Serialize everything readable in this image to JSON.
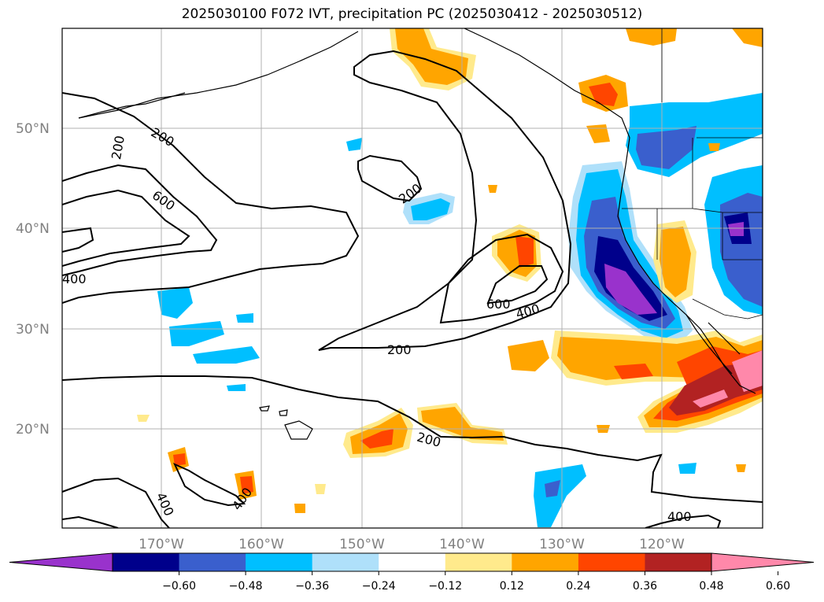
{
  "title": "2025030100 F072 IVT, precipitation PC (2025030412 - 2025030512)",
  "map": {
    "lat_labels": [
      "50°N",
      "40°N",
      "30°N",
      "20°N"
    ],
    "lon_labels": [
      "170°W",
      "160°W",
      "150°W",
      "140°W",
      "130°W",
      "120°W"
    ],
    "contour_labels": [
      "200",
      "200",
      "200",
      "200",
      "200",
      "400",
      "400",
      "400",
      "400",
      "400",
      "600",
      "600"
    ]
  },
  "colorbar": {
    "ticks": [
      "−0.60",
      "−0.48",
      "−0.36",
      "−0.24",
      "−0.12",
      "0.12",
      "0.24",
      "0.36",
      "0.48",
      "0.60"
    ],
    "colors": [
      "#9932cc",
      "#00008b",
      "#3a5fcd",
      "#00bfff",
      "#afe0fa",
      "#ffffff",
      "#ffea8c",
      "#ffa500",
      "#ff4500",
      "#b22222",
      "#ff88aa"
    ]
  },
  "colors": {
    "neg_light": "#afe0fa",
    "neg_cyan": "#00bfff",
    "neg_blue": "#3a5fcd",
    "neg_navy": "#00008b",
    "neg_purple": "#9932cc",
    "pos_yellow": "#ffea8c",
    "pos_orange": "#ffa500",
    "pos_red": "#ff4500",
    "pos_brick": "#b22222",
    "pos_pink": "#ff88aa"
  }
}
